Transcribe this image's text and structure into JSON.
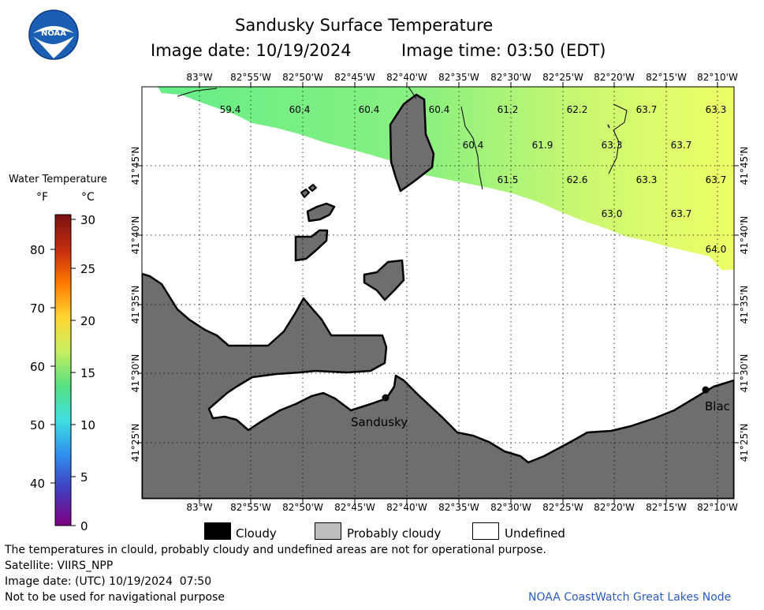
{
  "header": {
    "title": "Sandusky Surface Temperature",
    "image_date": "Image date: 10/19/2024",
    "image_time": "Image time: 03:50 (EDT)"
  },
  "logo": {
    "text": "NOAA",
    "icon": "noaa-logo-icon"
  },
  "colorbar": {
    "title": "Water Temperature",
    "unit_f": "°F",
    "unit_c": "°C",
    "f_ticks": [
      "80",
      "70",
      "60",
      "50",
      "40"
    ],
    "c_ticks": [
      "30",
      "25",
      "20",
      "15",
      "10",
      "5",
      "0"
    ]
  },
  "map": {
    "lon_labels": [
      "83°W",
      "82°55'W",
      "82°50'W",
      "82°45'W",
      "82°40'W",
      "82°35'W",
      "82°30'W",
      "82°25'W",
      "82°20'W",
      "82°15'W",
      "82°10'W"
    ],
    "lat_labels": [
      "41°45'N",
      "41°40'N",
      "41°35'N",
      "41°30'N",
      "41°25'N"
    ],
    "city_labels": [
      "Sandusky",
      "Blac"
    ],
    "temperatures": [
      {
        "value": "59.4"
      },
      {
        "value": "60.4"
      },
      {
        "value": "60.4"
      },
      {
        "value": "60.4"
      },
      {
        "value": "61.2"
      },
      {
        "value": "62.2"
      },
      {
        "value": "63.7"
      },
      {
        "value": "63.3"
      },
      {
        "value": "60.4"
      },
      {
        "value": "61.9"
      },
      {
        "value": "63.3"
      },
      {
        "value": "63.7"
      },
      {
        "value": "61.5"
      },
      {
        "value": "62.6"
      },
      {
        "value": "63.3"
      },
      {
        "value": "63.7"
      },
      {
        "value": "63.0"
      },
      {
        "value": "63.7"
      },
      {
        "value": "64.0"
      }
    ]
  },
  "key": {
    "cloudy": "Cloudy",
    "probably_cloudy": "Probably cloudy",
    "undefined": "Undefined"
  },
  "footer": {
    "disclaimer": "The temperatures in clould, probably cloudy and undefined areas are not for operational purpose.",
    "satellite": "Satellite: VIIRS_NPP",
    "utc_date": "Image date: (UTC) 10/19/2024  07:50",
    "nav_warning": "Not to be used for navigational purpose",
    "credit": "NOAA CoastWatch Great Lakes Node"
  },
  "colors": {
    "land": "#6e6e6e",
    "cold_water": "#66ee88",
    "warm_water": "#eeff66",
    "credit": "#2a5bbf"
  }
}
